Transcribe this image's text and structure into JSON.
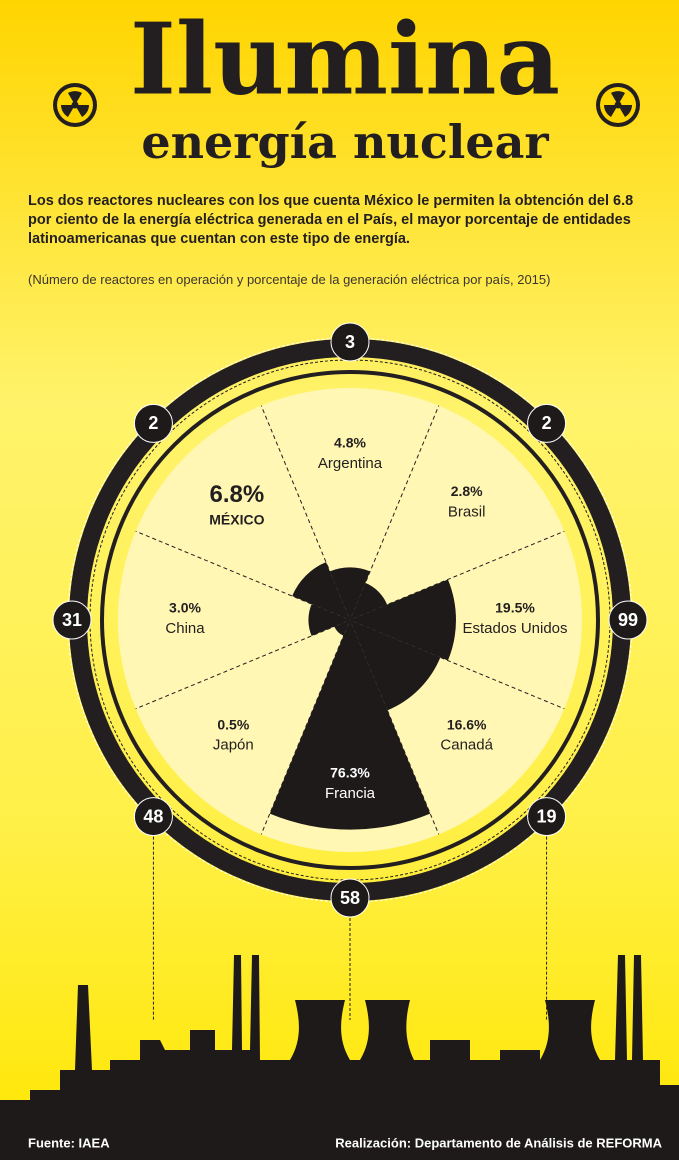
{
  "header": {
    "title": "Ilumina",
    "subtitle": "energía nuclear"
  },
  "description": "Los dos reactores nucleares con los que cuenta México le permiten la obtención del 6.8 por ciento de la energía eléctrica generada en el País, el mayor porcentaje de entidades latinoamericanas que cuentan con este tipo de energía.",
  "note": "(Número de reactores en operación y porcentaje de la generación eléctrica por país, 2015)",
  "chart_data": {
    "type": "polar",
    "categories": [
      "MÉXICO",
      "Argentina",
      "Brasil",
      "Estados Unidos",
      "Canadá",
      "Francia",
      "Japón",
      "China"
    ],
    "values": [
      6.8,
      4.8,
      2.8,
      19.5,
      16.6,
      76.3,
      0.5,
      3.0
    ],
    "value_labels": [
      "6.8%",
      "4.8%",
      "2.8%",
      "19.5%",
      "16.6%",
      "76.3%",
      "0.5%",
      "3.0%"
    ],
    "reactors": [
      2,
      3,
      2,
      99,
      19,
      58,
      48,
      31
    ],
    "color": "#1e1a1a"
  },
  "footer": {
    "source": "Fuente: IAEA",
    "credit": "Realización: Departamento de Análisis de REFORMA"
  }
}
